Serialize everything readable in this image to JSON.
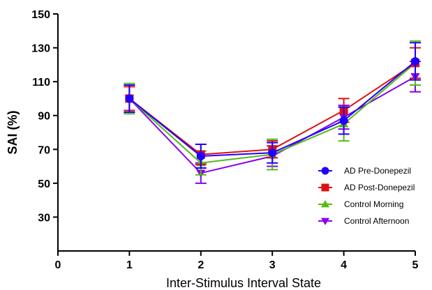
{
  "chart_data": {
    "type": "line",
    "xlabel": "Inter-Stimulus Interval State",
    "ylabel": "SAI (%)",
    "xlim": [
      0,
      5
    ],
    "ylim": [
      10,
      150
    ],
    "x_ticks": [
      "0",
      "1",
      "2",
      "3",
      "4",
      "5"
    ],
    "y_ticks": [
      "30",
      "50",
      "70",
      "90",
      "110",
      "130",
      "150"
    ],
    "x": [
      1,
      2,
      3,
      4,
      5
    ],
    "grid": false,
    "legend_position": "bottom-right",
    "series": [
      {
        "name": "AD Pre-Donepezil",
        "color": "#1f00ff",
        "marker": "circle",
        "values": [
          100,
          66,
          68,
          87,
          122
        ],
        "error": [
          8,
          7,
          6,
          8,
          11
        ]
      },
      {
        "name": "AD Post-Donepezil",
        "color": "#dd1111",
        "marker": "square",
        "values": [
          100,
          67,
          70,
          93,
          121
        ],
        "error": [
          7,
          6,
          5,
          7,
          9
        ]
      },
      {
        "name": "Control Morning",
        "color": "#55bb11",
        "marker": "triangle-up",
        "values": [
          100,
          62,
          67,
          85,
          121
        ],
        "error": [
          9,
          7,
          9,
          10,
          13
        ]
      },
      {
        "name": "Control Afternoon",
        "color": "#8800ee",
        "marker": "triangle-down",
        "values": [
          100,
          56,
          66,
          89,
          113
        ],
        "error": [
          8,
          6,
          6,
          7,
          9
        ]
      }
    ]
  }
}
